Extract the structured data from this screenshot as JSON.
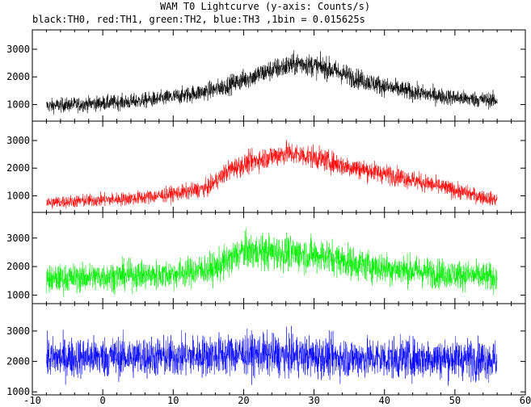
{
  "title": "WAM T0 Lightcurve (y-axis: Counts/s)",
  "subtitle": "black:TH0, red:TH1, green:TH2, blue:TH3 ,1bin = 0.015625s",
  "chart_data": {
    "type": "line",
    "title": "WAM T0 Lightcurve (y-axis: Counts/s)",
    "subtitle": "black:TH0, red:TH1, green:TH2, blue:TH3 ,1bin = 0.015625s",
    "xlabel": "",
    "ylabel": "Counts/s",
    "xlim": [
      -10,
      60
    ],
    "x_ticks": [
      -10,
      0,
      10,
      20,
      30,
      40,
      50,
      60
    ],
    "x_range_data": [
      -8,
      56
    ],
    "grid": false,
    "legend": "none",
    "panels": [
      {
        "name": "TH0",
        "color": "#000000",
        "ylim": [
          400,
          3700
        ],
        "y_ticks": [
          1000,
          2000,
          3000
        ],
        "x": [
          -8,
          -4,
          0,
          4,
          8,
          12,
          16,
          20,
          24,
          28,
          32,
          36,
          40,
          44,
          48,
          52,
          56
        ],
        "y": [
          950,
          1000,
          1050,
          1100,
          1200,
          1350,
          1550,
          1900,
          2250,
          2500,
          2300,
          1950,
          1650,
          1450,
          1300,
          1200,
          1150
        ],
        "noise": 320
      },
      {
        "name": "TH1",
        "color": "#ff0000",
        "ylim": [
          400,
          3700
        ],
        "y_ticks": [
          1000,
          2000,
          3000
        ],
        "x": [
          -8,
          -4,
          0,
          4,
          8,
          12,
          15,
          18,
          22,
          26,
          30,
          34,
          38,
          42,
          46,
          50,
          54,
          56
        ],
        "y": [
          750,
          800,
          850,
          900,
          1000,
          1150,
          1300,
          1950,
          2300,
          2550,
          2400,
          2100,
          1900,
          1700,
          1450,
          1200,
          950,
          850
        ],
        "noise": 320
      },
      {
        "name": "TH2",
        "color": "#00ee00",
        "ylim": [
          700,
          3900
        ],
        "y_ticks": [
          1000,
          2000,
          3000
        ],
        "x": [
          -8,
          -4,
          0,
          4,
          8,
          12,
          16,
          20,
          24,
          28,
          32,
          36,
          40,
          44,
          48,
          52,
          56
        ],
        "y": [
          1550,
          1600,
          1650,
          1700,
          1700,
          1800,
          1950,
          2550,
          2500,
          2450,
          2350,
          2100,
          1950,
          1850,
          1750,
          1700,
          1600
        ],
        "noise": 480
      },
      {
        "name": "TH3",
        "color": "#0000ff",
        "ylim": [
          900,
          3900
        ],
        "y_ticks": [
          1000,
          2000,
          3000
        ],
        "x": [
          -8,
          0,
          10,
          20,
          30,
          40,
          50,
          56
        ],
        "y": [
          2100,
          2150,
          2150,
          2250,
          2150,
          2100,
          2100,
          2050
        ],
        "noise": 560
      }
    ]
  }
}
